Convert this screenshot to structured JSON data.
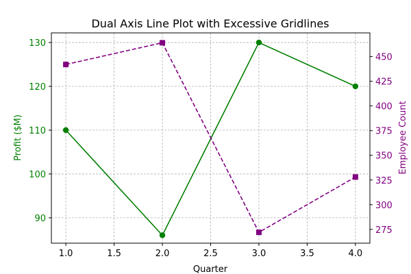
{
  "chart_data": {
    "type": "line",
    "title": "Dual Axis Line Plot with Excessive Gridlines",
    "xlabel": "Quarter",
    "x": [
      1.0,
      2.0,
      3.0,
      4.0
    ],
    "xlim": [
      0.85,
      4.15
    ],
    "xticks": [
      "1.0",
      "1.5",
      "2.0",
      "2.5",
      "3.0",
      "3.5",
      "4.0"
    ],
    "grid": true,
    "left_axis": {
      "label": "Profit ($M)",
      "color": "#008000",
      "ylim": [
        84.2,
        132.2
      ],
      "ticks": [
        "90",
        "100",
        "110",
        "120",
        "130"
      ]
    },
    "right_axis": {
      "label": "Employee Count",
      "color": "#800080",
      "ylim": [
        261,
        474
      ],
      "ticks": [
        "275",
        "300",
        "325",
        "350",
        "375",
        "400",
        "425",
        "450"
      ]
    },
    "series": [
      {
        "axis": "left",
        "values": [
          110,
          86,
          130,
          120
        ],
        "color": "#008000",
        "linestyle": "solid",
        "marker": "circle"
      },
      {
        "axis": "right",
        "values": [
          442,
          464,
          272,
          328
        ],
        "color": "#800080",
        "linestyle": "dashed",
        "marker": "square"
      }
    ]
  }
}
